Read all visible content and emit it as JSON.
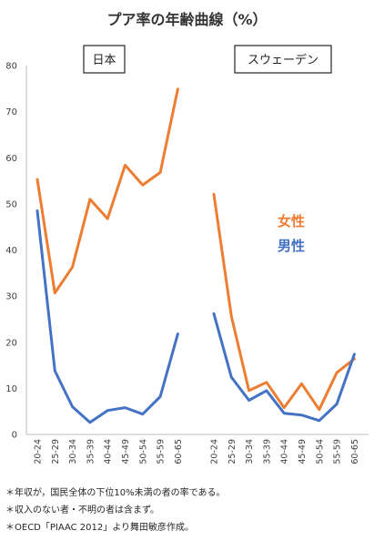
{
  "title": "プア率の年齢曲線（%）",
  "chart_data": {
    "type": "line",
    "categories": [
      "20-24",
      "25-29",
      "30-34",
      "35-39",
      "40-44",
      "45-49",
      "50-54",
      "55-59",
      "60-65"
    ],
    "yticks": [
      "0",
      "10",
      "20",
      "30",
      "40",
      "50",
      "60",
      "70",
      "80"
    ],
    "ylim": [
      0,
      80
    ],
    "grid": false,
    "legend": [
      {
        "name": "女性",
        "color": "#ED7D31"
      },
      {
        "name": "男性",
        "color": "#4472C4"
      }
    ],
    "panels": [
      {
        "label": "日本",
        "series": [
          {
            "name": "女性",
            "color": "#ED7D31",
            "values": [
              55.3,
              30.7,
              36.3,
              51.0,
              46.8,
              58.4,
              54.1,
              56.8,
              74.9
            ]
          },
          {
            "name": "男性",
            "color": "#4472C4",
            "values": [
              48.5,
              13.8,
              6.0,
              2.6,
              5.2,
              5.8,
              4.4,
              8.2,
              21.8
            ]
          }
        ]
      },
      {
        "label": "スウェーデン",
        "series": [
          {
            "name": "女性",
            "color": "#ED7D31",
            "values": [
              52.1,
              25.6,
              9.5,
              11.3,
              5.8,
              11.0,
              5.4,
              13.4,
              16.4
            ]
          },
          {
            "name": "男性",
            "color": "#4472C4",
            "values": [
              26.2,
              12.4,
              7.4,
              9.5,
              4.6,
              4.2,
              3.0,
              6.6,
              17.4
            ]
          }
        ]
      }
    ]
  },
  "notes": [
    "＊年収が，国民全体の下位10%未満の者の率である。",
    "＊収入のない者・不明の者は含まず。",
    "＊OECD「PIAAC 2012」より舞田敏彦作成。"
  ]
}
